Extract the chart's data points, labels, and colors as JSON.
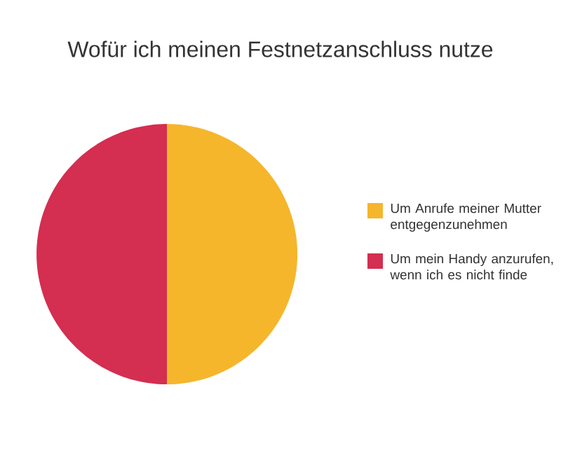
{
  "chart_data": {
    "type": "pie",
    "title": "Wofür ich meinen Festnetzanschluss nutze",
    "categories": [
      "Um Anrufe meiner Mutter entgegenzunehmen",
      "Um mein Handy anzurufen, wenn ich es nicht finde"
    ],
    "values": [
      50,
      50
    ],
    "colors": [
      "#f5b62c",
      "#d42e50"
    ],
    "legend": "right"
  }
}
